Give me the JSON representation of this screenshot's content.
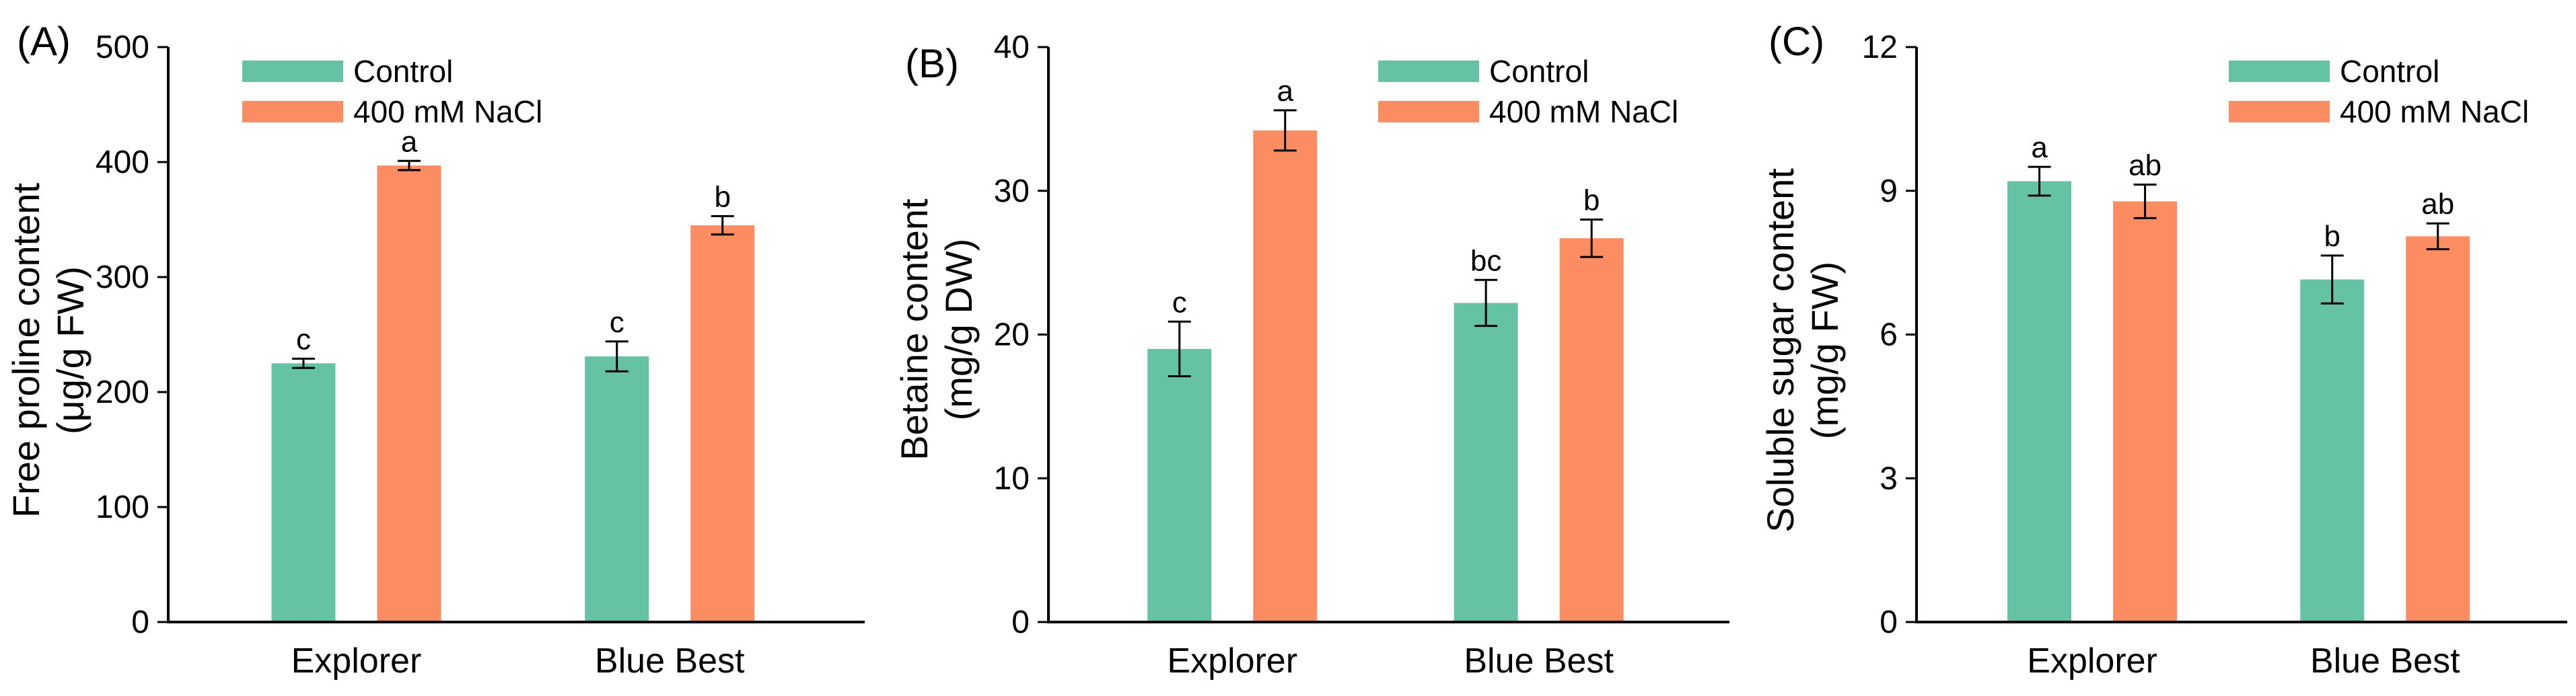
{
  "colors": {
    "control": "#66c2a5",
    "nacl": "#fc8d62",
    "axis": "#000000"
  },
  "chart_data": [
    {
      "type": "bar",
      "panel_label": "(A)",
      "ylabel_line1": "Free proline content",
      "ylabel_line2": "(μg/g FW)",
      "ylim": [
        0,
        500
      ],
      "yticks": [
        "0",
        "100",
        "200",
        "300",
        "400",
        "500"
      ],
      "categories": [
        "Explorer",
        "Blue Best"
      ],
      "legend_position": "top-left",
      "series": [
        {
          "name": "Control",
          "values": [
            225,
            231
          ],
          "errors": [
            4,
            13
          ],
          "letters": [
            "c",
            "c"
          ]
        },
        {
          "name": "400 mM NaCl",
          "values": [
            397,
            345
          ],
          "errors": [
            4,
            8
          ],
          "letters": [
            "a",
            "b"
          ]
        }
      ]
    },
    {
      "type": "bar",
      "panel_label": "(B)",
      "ylabel_line1": "Betaine content",
      "ylabel_line2": "(mg/g DW)",
      "ylim": [
        0,
        40
      ],
      "yticks": [
        "0",
        "10",
        "20",
        "30",
        "40"
      ],
      "categories": [
        "Explorer",
        "Blue Best"
      ],
      "legend_position": "top-right",
      "series": [
        {
          "name": "Control",
          "values": [
            19.0,
            22.2
          ],
          "errors": [
            1.9,
            1.6
          ],
          "letters": [
            "c",
            "bc"
          ]
        },
        {
          "name": "400 mM NaCl",
          "values": [
            34.2,
            26.7
          ],
          "errors": [
            1.4,
            1.3
          ],
          "letters": [
            "a",
            "b"
          ]
        }
      ]
    },
    {
      "type": "bar",
      "panel_label": "(C)",
      "ylabel_line1": "Soluble sugar content",
      "ylabel_line2": "(mg/g FW)",
      "ylim": [
        0,
        12
      ],
      "yticks": [
        "0",
        "3",
        "6",
        "9",
        "12"
      ],
      "categories": [
        "Explorer",
        "Blue Best"
      ],
      "legend_position": "top-right",
      "series": [
        {
          "name": "Control",
          "values": [
            9.2,
            7.15
          ],
          "errors": [
            0.3,
            0.5
          ],
          "letters": [
            "a",
            "b"
          ]
        },
        {
          "name": "400 mM NaCl",
          "values": [
            8.78,
            8.05
          ],
          "errors": [
            0.35,
            0.27
          ],
          "letters": [
            "ab",
            "ab"
          ]
        }
      ]
    }
  ]
}
